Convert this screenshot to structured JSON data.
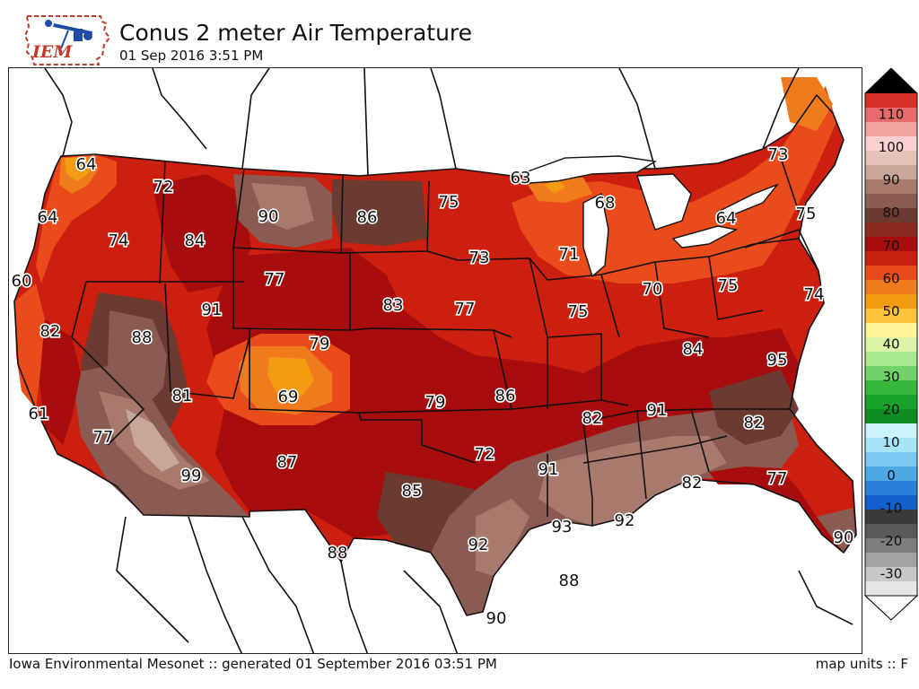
{
  "header": {
    "logo_text": "IEM",
    "title": "Conus 2 meter Air Temperature",
    "timestamp": "01 Sep 2016 3:51 PM"
  },
  "map": {
    "fill_colors": {
      "t60": "#f39c12",
      "t65": "#f07b1c",
      "t70": "#e94b1a",
      "t75": "#cc1f0f",
      "t80": "#a70d0d",
      "t85": "#8a2a1e",
      "t90": "#6b3a30",
      "t93": "#8a5b52",
      "t95": "#a87a6d",
      "t100": "#c8a79a"
    },
    "station_labels": [
      "64",
      "72",
      "64",
      "74",
      "84",
      "90",
      "86",
      "75",
      "63",
      "68",
      "73",
      "75",
      "60",
      "77",
      "91",
      "83",
      "73",
      "71",
      "70",
      "64",
      "75",
      "74",
      "82",
      "88",
      "79",
      "77",
      "75",
      "84",
      "95",
      "61",
      "81",
      "69",
      "79",
      "86",
      "91",
      "82",
      "82",
      "77",
      "99",
      "87",
      "72",
      "91",
      "92",
      "82",
      "77",
      "85",
      "93",
      "90",
      "88",
      "92",
      "88",
      "90"
    ]
  },
  "colorbar": {
    "unit": "F",
    "ticks": [
      "110",
      "100",
      "90",
      "80",
      "70",
      "60",
      "50",
      "40",
      "30",
      "20",
      "10",
      "0",
      "-10",
      "-20",
      "-30"
    ],
    "colors": [
      "#000000",
      "#d73027",
      "#e86b6b",
      "#f4a3a3",
      "#fbd0cf",
      "#e4c3b9",
      "#c8a79a",
      "#a87a6d",
      "#8a5b52",
      "#6b3a30",
      "#8a2a1e",
      "#a70d0d",
      "#c81f0f",
      "#e94b1a",
      "#f07b1c",
      "#f39c12",
      "#ffc23c",
      "#fff59a",
      "#d9f5a8",
      "#a8e88e",
      "#6fd36a",
      "#36b83a",
      "#17a32a",
      "#0f8c22",
      "#ccf3fb",
      "#a7e4f5",
      "#7cc9ef",
      "#4fa7e6",
      "#2a7fd9",
      "#135fcc",
      "#3a3a3a",
      "#5a5a5a",
      "#7d7d7d",
      "#a3a3a3",
      "#c8c8c8",
      "#e6e6e6",
      "#ffffff"
    ]
  },
  "footer": {
    "credit": "Iowa Environmental Mesonet :: generated 01 September 2016 03:51 PM",
    "units": "map units :: F"
  }
}
